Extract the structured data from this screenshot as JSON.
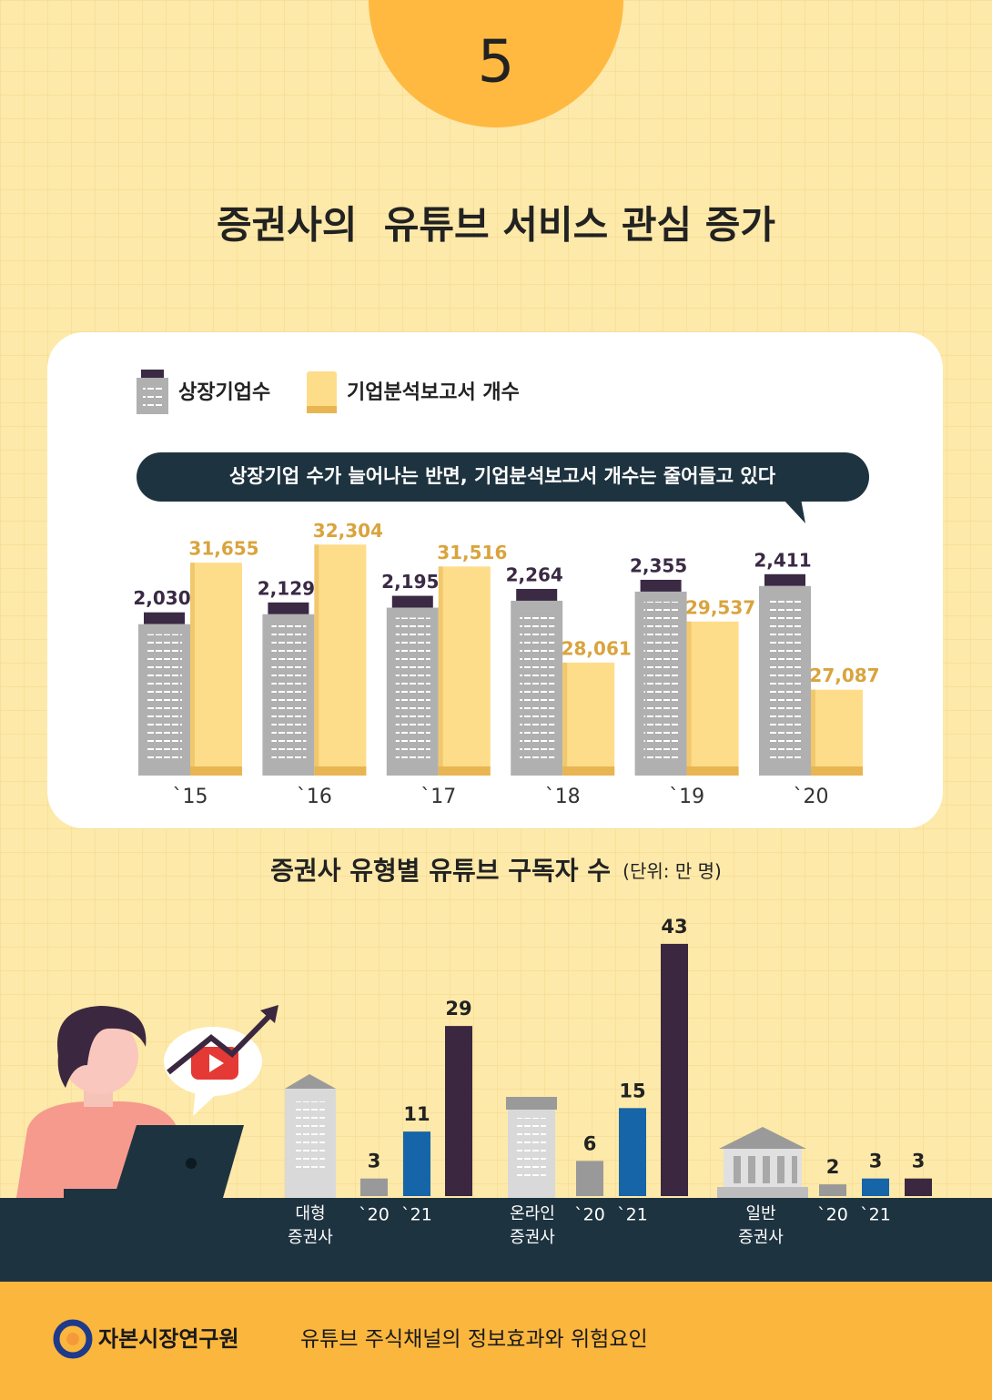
{
  "page": {
    "number": "5",
    "title": "증권사의  유튜브 서비스 관심 증가"
  },
  "chart_data": [
    {
      "type": "bar",
      "annotation": "상장기업 수가 늘어나는 반면, 기업분석보고서 개수는 줄어들고 있다",
      "legend": "top-left",
      "categories": [
        "`15",
        "`16",
        "`17",
        "`18",
        "`19",
        "`20"
      ],
      "ylim": [
        400,
        2900
      ],
      "y2lim": [
        24000,
        33000
      ],
      "series": [
        {
          "name": "상장기업수",
          "color": "#b0b0b0",
          "values": [
            2030,
            2129,
            2195,
            2264,
            2355,
            2411
          ],
          "value_labels": [
            "2,030",
            "2,129",
            "2,195",
            "2,264",
            "2,355",
            "2,411"
          ]
        },
        {
          "name": "기업분석보고서 개수",
          "color": "#fedd8a",
          "axis": "y2",
          "values": [
            31655,
            32304,
            31516,
            28061,
            29537,
            27087
          ],
          "value_labels": [
            "31,655",
            "32,304",
            "31,516",
            "28,061",
            "29,537",
            "27,087"
          ]
        }
      ]
    },
    {
      "type": "bar",
      "title": "증권사 유형별 유튜브 구독자 수",
      "subtitle": "(단위: 만 명)",
      "categories": [
        "대형 증권사",
        "온라인 증권사",
        "일반 증권사"
      ],
      "ylim": [
        0,
        45
      ],
      "series": [
        {
          "name": "`20",
          "color": "#999999",
          "values": [
            3,
            6,
            2
          ]
        },
        {
          "name": "`21",
          "color": "#1565a8",
          "values": [
            11,
            15,
            3
          ]
        },
        {
          "name": null,
          "color": "#3b2840",
          "values": [
            29,
            43,
            3
          ]
        }
      ]
    }
  ],
  "footer": {
    "organization": "자본시장연구원",
    "report_title": "유튜브 주식채널의 정보효과와 위험요인"
  }
}
